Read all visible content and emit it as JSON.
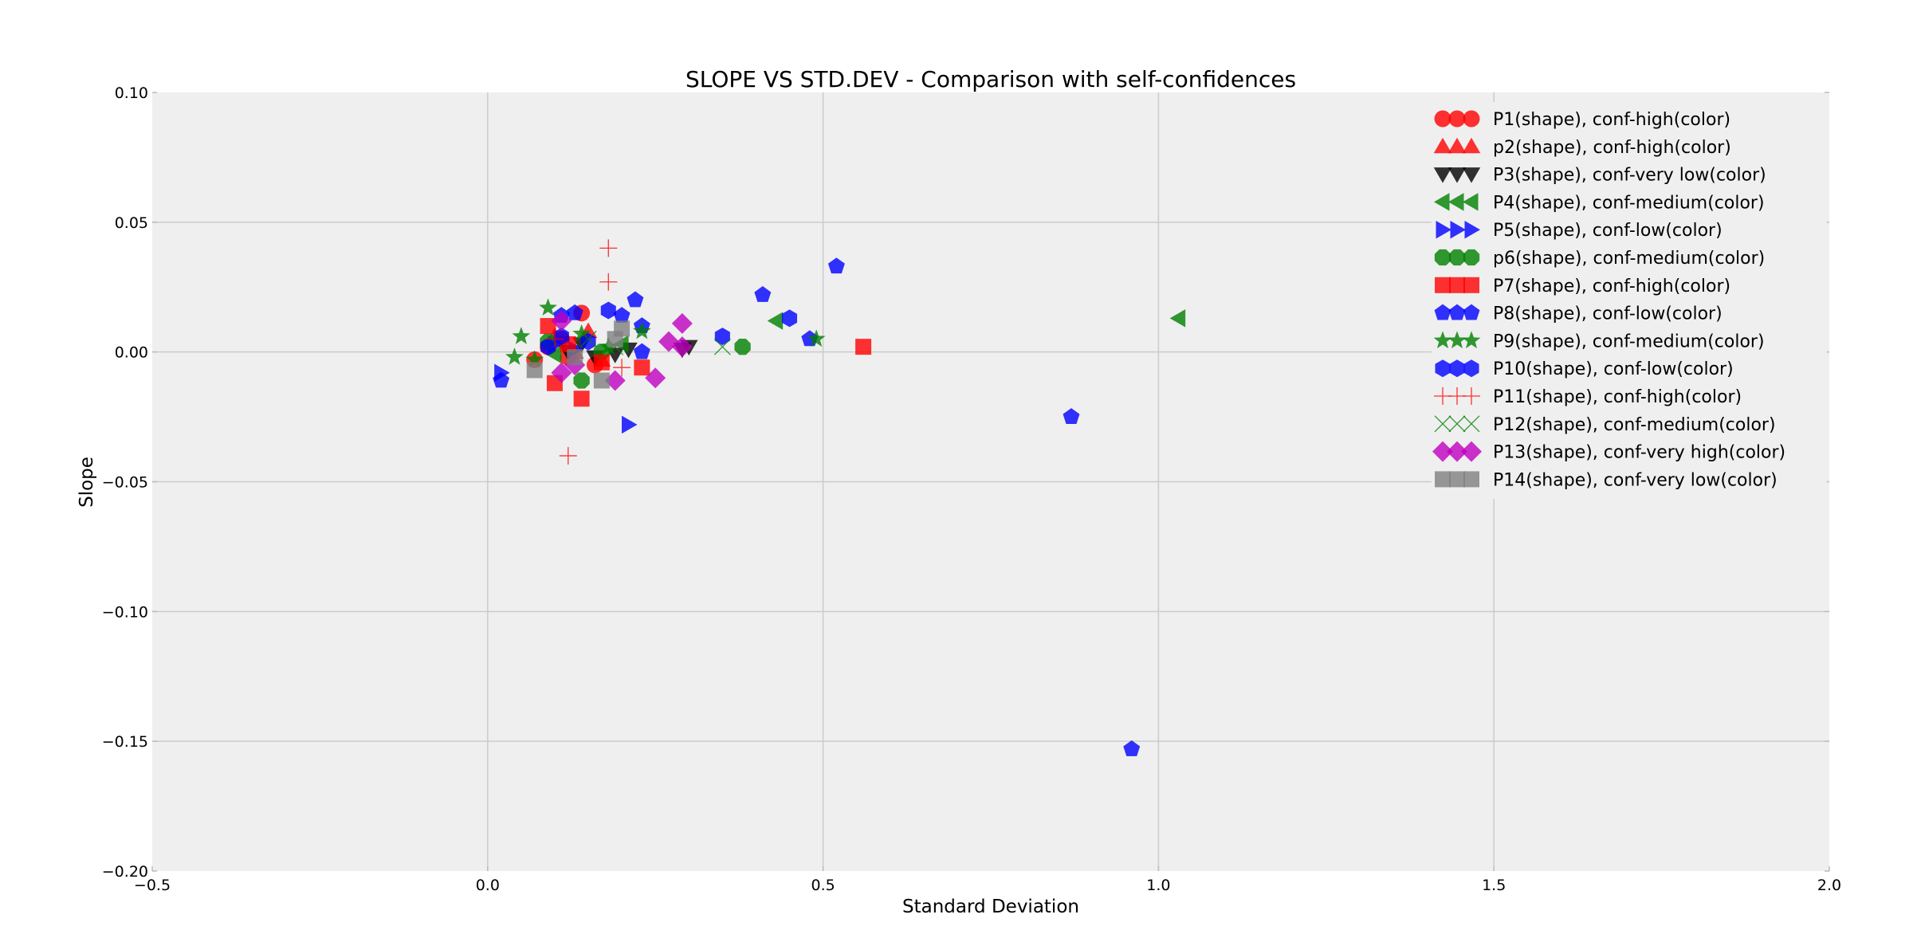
{
  "chart_data": {
    "type": "scatter",
    "title": "SLOPE VS STD.DEV - Comparison with self-confidences",
    "xlabel": "Standard Deviation",
    "ylabel": "Slope",
    "xlim": [
      -0.5,
      2.0
    ],
    "ylim": [
      -0.2,
      0.1
    ],
    "xticks": [
      -0.5,
      0.0,
      0.5,
      1.0,
      1.5,
      2.0
    ],
    "xtick_labels": [
      "−0.5",
      "0.0",
      "0.5",
      "1.0",
      "1.5",
      "2.0"
    ],
    "yticks": [
      0.1,
      0.05,
      0.0,
      -0.05,
      -0.1,
      -0.15,
      -0.2
    ],
    "ytick_labels": [
      "0.10",
      "0.05",
      "0.00",
      "−0.05",
      "−0.10",
      "−0.15",
      "−0.20"
    ],
    "grid": true,
    "legend_position": "top-right",
    "series": [
      {
        "name": "P1(shape), conf-high(color)",
        "marker": "circle",
        "color": "#ff0000",
        "points": [
          [
            0.07,
            -0.003
          ],
          [
            0.09,
            0.002
          ],
          [
            0.11,
            0.005
          ],
          [
            0.14,
            0.015
          ],
          [
            0.16,
            -0.005
          ],
          [
            0.12,
            -0.002
          ]
        ]
      },
      {
        "name": "p2(shape), conf-high(color)",
        "marker": "triangle-up",
        "color": "#ff0000",
        "points": [
          [
            0.1,
            0.006
          ],
          [
            0.13,
            0.0
          ],
          [
            0.15,
            0.008
          ],
          [
            0.17,
            -0.003
          ]
        ]
      },
      {
        "name": "P3(shape), conf-very low(color)",
        "marker": "triangle-down",
        "color": "#000000",
        "points": [
          [
            0.12,
            0.0
          ],
          [
            0.16,
            -0.002
          ],
          [
            0.21,
            0.001
          ],
          [
            0.29,
            0.001
          ],
          [
            0.3,
            0.002
          ],
          [
            0.14,
            0.003
          ],
          [
            0.19,
            -0.001
          ]
        ]
      },
      {
        "name": "P4(shape), conf-medium(color)",
        "marker": "triangle-left",
        "color": "#008000",
        "points": [
          [
            0.43,
            0.012
          ],
          [
            1.03,
            0.013
          ],
          [
            0.1,
            -0.001
          ],
          [
            0.2,
            0.003
          ]
        ]
      },
      {
        "name": "P5(shape), conf-low(color)",
        "marker": "triangle-right",
        "color": "#0000ff",
        "points": [
          [
            0.02,
            -0.008
          ],
          [
            0.21,
            -0.028
          ],
          [
            0.1,
            0.003
          ],
          [
            0.13,
            0.001
          ]
        ]
      },
      {
        "name": "p6(shape), conf-medium(color)",
        "marker": "octagon",
        "color": "#008000",
        "points": [
          [
            0.38,
            0.002
          ],
          [
            0.14,
            -0.011
          ],
          [
            0.09,
            0.004
          ],
          [
            0.17,
            0.0
          ]
        ]
      },
      {
        "name": "P7(shape), conf-high(color)",
        "marker": "square",
        "color": "#ff0000",
        "points": [
          [
            0.56,
            0.002
          ],
          [
            0.14,
            -0.018
          ],
          [
            0.1,
            -0.012
          ],
          [
            0.09,
            0.01
          ],
          [
            0.23,
            -0.006
          ],
          [
            0.17,
            -0.004
          ],
          [
            0.12,
            0.003
          ]
        ]
      },
      {
        "name": "P8(shape), conf-low(color)",
        "marker": "pentagon",
        "color": "#0000ff",
        "points": [
          [
            0.52,
            0.033
          ],
          [
            0.41,
            0.022
          ],
          [
            0.22,
            0.02
          ],
          [
            0.48,
            0.005
          ],
          [
            0.87,
            -0.025
          ],
          [
            0.96,
            -0.153
          ],
          [
            0.02,
            -0.011
          ],
          [
            0.2,
            0.014
          ],
          [
            0.23,
            0.01
          ],
          [
            0.13,
            0.015
          ],
          [
            0.11,
            0.014
          ],
          [
            0.23,
            0.0
          ]
        ]
      },
      {
        "name": "P9(shape), conf-medium(color)",
        "marker": "star",
        "color": "#008000",
        "points": [
          [
            0.09,
            0.017
          ],
          [
            0.05,
            0.006
          ],
          [
            0.49,
            0.005
          ],
          [
            0.04,
            -0.002
          ],
          [
            0.14,
            0.007
          ],
          [
            0.23,
            0.008
          ],
          [
            0.07,
            -0.003
          ],
          [
            0.18,
            0.002
          ]
        ]
      },
      {
        "name": "P10(shape), conf-low(color)",
        "marker": "hexagon",
        "color": "#0000ff",
        "points": [
          [
            0.35,
            0.006
          ],
          [
            0.45,
            0.013
          ],
          [
            0.18,
            0.016
          ],
          [
            0.11,
            0.006
          ],
          [
            0.09,
            0.002
          ],
          [
            0.15,
            0.004
          ]
        ]
      },
      {
        "name": "P11(shape), conf-high(color)",
        "marker": "plus",
        "color": "#ff0000",
        "points": [
          [
            0.18,
            0.04
          ],
          [
            0.18,
            0.027
          ],
          [
            0.12,
            -0.04
          ],
          [
            0.1,
            0.005
          ],
          [
            0.2,
            -0.006
          ]
        ]
      },
      {
        "name": "P12(shape), conf-medium(color)",
        "marker": "x",
        "color": "#008000",
        "points": [
          [
            0.35,
            0.002
          ],
          [
            0.19,
            0.002
          ],
          [
            0.15,
            0.005
          ]
        ]
      },
      {
        "name": "P13(shape), conf-very high(color)",
        "marker": "diamond",
        "color": "#bf00bf",
        "points": [
          [
            0.29,
            0.011
          ],
          [
            0.27,
            0.004
          ],
          [
            0.29,
            0.002
          ],
          [
            0.25,
            -0.01
          ],
          [
            0.19,
            -0.011
          ],
          [
            0.11,
            0.012
          ],
          [
            0.13,
            -0.005
          ],
          [
            0.11,
            -0.008
          ]
        ]
      },
      {
        "name": "P14(shape), conf-very low(color)",
        "marker": "square",
        "color": "#808080",
        "points": [
          [
            0.2,
            0.009
          ],
          [
            0.19,
            0.005
          ],
          [
            0.17,
            -0.011
          ],
          [
            0.07,
            -0.007
          ],
          [
            0.13,
            -0.002
          ]
        ]
      }
    ]
  }
}
